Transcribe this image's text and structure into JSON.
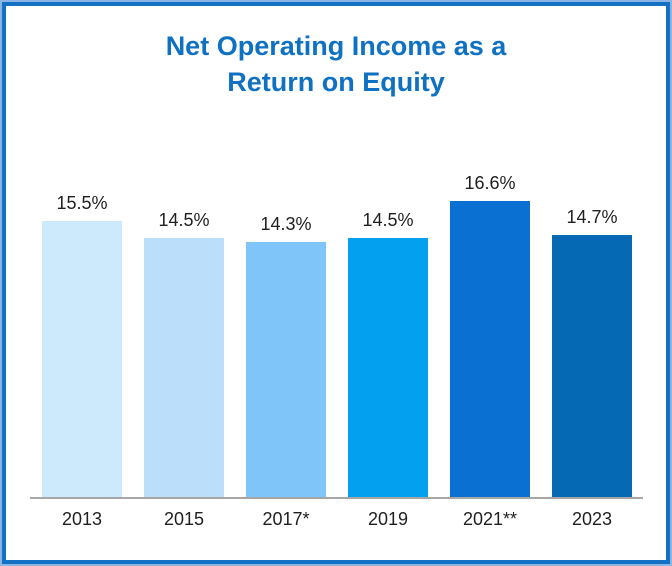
{
  "header": {
    "title_line1": "Net Operating Income as a",
    "title_line2": "Return on Equity"
  },
  "colors": {
    "frame_outer_border": "#8ab5e3",
    "frame_inner_border": "#1470c4",
    "title_text": "#0f71c2",
    "label_text": "#1f1f1f",
    "axis_line": "#a6a6a6"
  },
  "chart_data": {
    "type": "bar",
    "title": "Net Operating Income as a Return on Equity",
    "categories": [
      "2013",
      "2015",
      "2017*",
      "2019",
      "2021**",
      "2023"
    ],
    "values": [
      15.5,
      14.5,
      14.3,
      14.5,
      16.6,
      14.7
    ],
    "value_labels": [
      "15.5%",
      "14.5%",
      "14.3%",
      "14.5%",
      "16.6%",
      "14.7%"
    ],
    "bar_colors": [
      "#cdeafc",
      "#bbdffb",
      "#80c5fa",
      "#04a0f0",
      "#0a70d2",
      "#0569b4"
    ],
    "value_suffix": "%",
    "xlabel": "",
    "ylabel": "",
    "yaxis_visible": false,
    "gridlines": false,
    "legend": "none",
    "data_labels_position": "above-bar"
  }
}
